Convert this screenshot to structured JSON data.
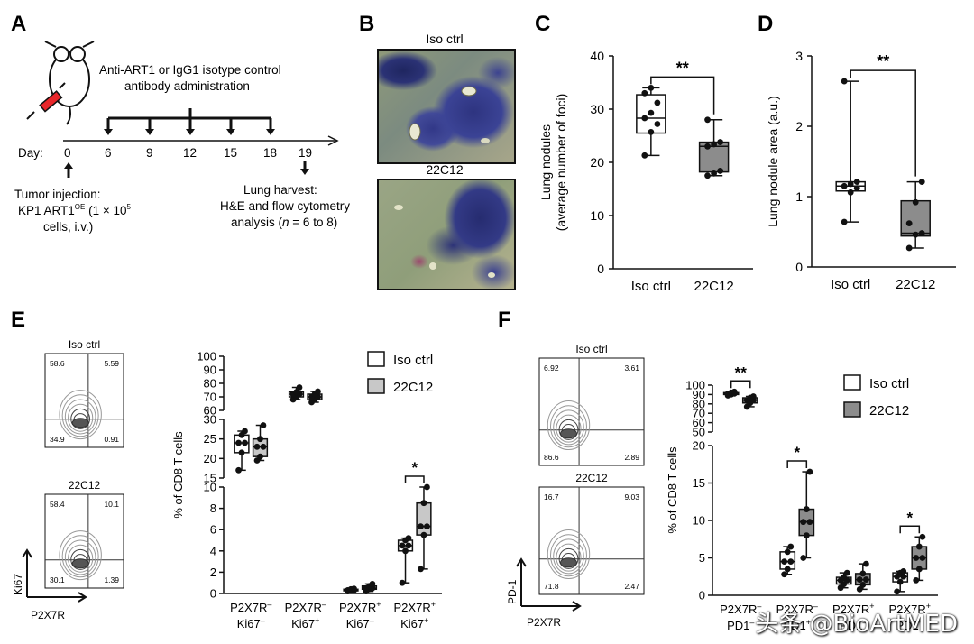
{
  "panels": {
    "a": {
      "letter": "A",
      "treatment_line1": "Anti-ART1 or IgG1 isotype control",
      "treatment_line2": "antibody administration",
      "day_label": "Day:",
      "days": [
        "0",
        "6",
        "9",
        "12",
        "15",
        "18",
        "19"
      ],
      "tumor_line1": "Tumor injection:",
      "tumor_line2": "KP1 ART1",
      "tumor_sup": "OE",
      "tumor_line2b": " (1 × 10",
      "tumor_sup2": "5",
      "tumor_line3": "cells, i.v.)",
      "harvest_line1": "Lung harvest:",
      "harvest_line2": "H&E and flow cytometry",
      "harvest_line3a": "analysis (",
      "harvest_n": "n",
      "harvest_line3b": " = 6 to 8)"
    },
    "b": {
      "letter": "B",
      "top_label": "Iso ctrl",
      "bottom_label": "22C12"
    },
    "c": {
      "letter": "C"
    },
    "d": {
      "letter": "D"
    },
    "e": {
      "letter": "E",
      "flow_top": {
        "label": "Iso ctrl",
        "q": [
          "58.6",
          "5.59",
          "34.9",
          "0.91"
        ]
      },
      "flow_bottom": {
        "label": "22C12",
        "q": [
          "58.4",
          "10.1",
          "30.1",
          "1.39"
        ]
      },
      "y_axis_label": "Ki67",
      "x_axis_label": "P2X7R"
    },
    "f": {
      "letter": "F",
      "flow_top": {
        "label": "Iso ctrl",
        "q": [
          "6.92",
          "3.61",
          "86.6",
          "2.89"
        ]
      },
      "flow_bottom": {
        "label": "22C12",
        "q": [
          "16.7",
          "9.03",
          "71.8",
          "2.47"
        ]
      },
      "y_axis_label": "PD-1",
      "x_axis_label": "P2X7R"
    }
  },
  "legend": {
    "iso": "Iso ctrl",
    "treat": "22C12"
  },
  "colors": {
    "iso_fill": "#ffffff",
    "treat_fill": "#8c8c8c",
    "treat_fill_light": "#c8c8c8",
    "he_purple": "#3a3f86",
    "he_tissue": "#8a9a78"
  },
  "watermark": "头条 @BioArtMED",
  "chart_data": [
    {
      "type": "box",
      "panel": "C",
      "ylabel": "Lung nodules (average number of foci)",
      "ylim": [
        0,
        40
      ],
      "yticks": [
        0,
        10,
        20,
        30,
        40
      ],
      "categories": [
        "Iso ctrl",
        "22C12"
      ],
      "significance": "**",
      "boxes": [
        {
          "group": "Iso ctrl",
          "min": 21.3,
          "q1": 25.5,
          "median": 28.3,
          "q3": 32.7,
          "max": 34.0,
          "points": [
            21.3,
            25.7,
            27.2,
            28.3,
            29.3,
            31.2,
            33.0,
            34.0
          ]
        },
        {
          "group": "22C12",
          "min": 17.5,
          "q1": 18.2,
          "median": 23.0,
          "q3": 23.8,
          "max": 28.0,
          "points": [
            17.5,
            17.9,
            18.4,
            23.0,
            23.4,
            23.8,
            28.0
          ]
        }
      ]
    },
    {
      "type": "box",
      "panel": "D",
      "ylabel": "Lung nodule area (a.u.)",
      "ylim": [
        0,
        3
      ],
      "yticks": [
        0,
        1,
        2,
        3
      ],
      "categories": [
        "Iso ctrl",
        "22C12"
      ],
      "significance": "**",
      "boxes": [
        {
          "group": "Iso ctrl",
          "min": 0.64,
          "q1": 1.08,
          "median": 1.15,
          "q3": 1.21,
          "max": 2.64,
          "points": [
            0.64,
            1.06,
            1.12,
            1.15,
            1.18,
            1.21,
            2.64
          ]
        },
        {
          "group": "22C12",
          "min": 0.27,
          "q1": 0.44,
          "median": 0.48,
          "q3": 0.94,
          "max": 1.21,
          "points": [
            0.27,
            0.46,
            0.48,
            0.62,
            0.92,
            1.21
          ]
        }
      ]
    },
    {
      "type": "box",
      "panel": "E",
      "ylabel": "% of CD8 T cells",
      "yticks_top": [
        60,
        70,
        80,
        90,
        100
      ],
      "yticks_mid": [
        15,
        20,
        25,
        30
      ],
      "yticks_bottom": [
        0,
        2,
        4,
        6,
        8,
        10
      ],
      "categories": [
        {
          "line1": "P2X7R",
          "sup1": "–",
          "line2": "Ki67",
          "sup2": "–"
        },
        {
          "line1": "P2X7R",
          "sup1": "–",
          "line2": "Ki67",
          "sup2": "+"
        },
        {
          "line1": "P2X7R",
          "sup1": "+",
          "line2": "Ki67",
          "sup2": "–"
        },
        {
          "line1": "P2X7R",
          "sup1": "+",
          "line2": "Ki67",
          "sup2": "+"
        }
      ],
      "significance": [
        {
          "category": 3,
          "label": "*"
        }
      ],
      "series": [
        {
          "name": "Iso ctrl",
          "boxes": [
            {
              "min": 17.0,
              "q1": 21.5,
              "median": 24.0,
              "q3": 26.0,
              "max": 27.0
            },
            {
              "min": 68.0,
              "q1": 70.0,
              "median": 72.0,
              "q3": 73.5,
              "max": 77.0
            },
            {
              "min": 0.2,
              "q1": 0.25,
              "median": 0.3,
              "q3": 0.4,
              "max": 0.45
            },
            {
              "min": 1.0,
              "q1": 4.0,
              "median": 4.5,
              "q3": 5.0,
              "max": 5.2
            }
          ]
        },
        {
          "name": "22C12",
          "boxes": [
            {
              "min": 19.5,
              "q1": 20.5,
              "median": 23.0,
              "q3": 25.0,
              "max": 28.5
            },
            {
              "min": 66.0,
              "q1": 68.0,
              "median": 70.0,
              "q3": 72.0,
              "max": 74.0
            },
            {
              "min": 0.2,
              "q1": 0.4,
              "median": 0.5,
              "q3": 0.7,
              "max": 0.9
            },
            {
              "min": 2.3,
              "q1": 5.5,
              "median": 6.3,
              "q3": 8.5,
              "max": 10.0
            }
          ]
        }
      ]
    },
    {
      "type": "box",
      "panel": "F",
      "ylabel": "% of CD8 T cells",
      "yticks_top": [
        50,
        60,
        70,
        80,
        90,
        100
      ],
      "yticks_bottom": [
        0,
        5,
        10,
        15,
        20
      ],
      "categories": [
        {
          "line1": "P2X7R",
          "sup1": "–",
          "line2": "PD1",
          "sup2": "–"
        },
        {
          "line1": "P2X7R",
          "sup1": "–",
          "line2": "PD1",
          "sup2": "+"
        },
        {
          "line1": "P2X7R",
          "sup1": "+",
          "line2": "PD1",
          "sup2": "–"
        },
        {
          "line1": "P2X7R",
          "sup1": "+",
          "line2": "PD1",
          "sup2": "+"
        }
      ],
      "significance": [
        {
          "category": 0,
          "label": "**"
        },
        {
          "category": 1,
          "label": "*"
        },
        {
          "category": 3,
          "label": "*"
        }
      ],
      "series": [
        {
          "name": "Iso ctrl",
          "boxes": [
            {
              "min": 89.0,
              "q1": 90.0,
              "median": 91.0,
              "q3": 92.0,
              "max": 93.0
            },
            {
              "min": 2.8,
              "q1": 3.5,
              "median": 4.5,
              "q3": 5.8,
              "max": 6.5
            },
            {
              "min": 1.0,
              "q1": 1.5,
              "median": 2.0,
              "q3": 2.4,
              "max": 3.0
            },
            {
              "min": 0.5,
              "q1": 1.8,
              "median": 2.5,
              "q3": 3.0,
              "max": 3.2
            }
          ]
        },
        {
          "name": "22C12",
          "boxes": [
            {
              "min": 77.0,
              "q1": 81.0,
              "median": 84.0,
              "q3": 86.5,
              "max": 88.0
            },
            {
              "min": 5.0,
              "q1": 8.0,
              "median": 9.8,
              "q3": 11.5,
              "max": 16.5
            },
            {
              "min": 0.8,
              "q1": 1.4,
              "median": 2.1,
              "q3": 2.9,
              "max": 4.2
            },
            {
              "min": 2.0,
              "q1": 3.5,
              "median": 5.0,
              "q3": 6.5,
              "max": 7.8
            }
          ]
        }
      ]
    }
  ]
}
